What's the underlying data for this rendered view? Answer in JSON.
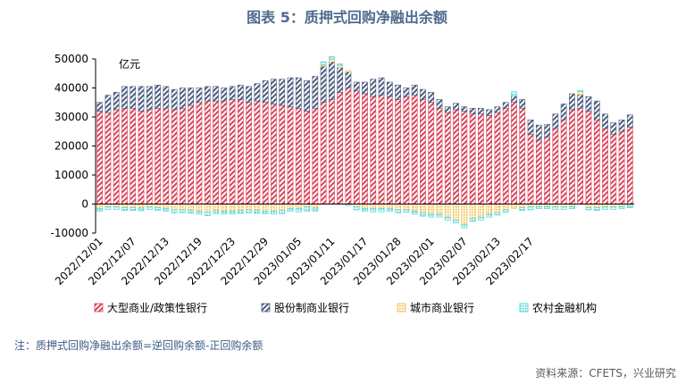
{
  "title": "图表 5：质押式回购净融出余额",
  "note": "注：质押式回购净融出余额=逆回购余额-正回购余额",
  "source": "资料来源：CFETS，兴业研究",
  "chart_data": {
    "type": "bar",
    "stacked": true,
    "unit_label": "亿元",
    "ylim": [
      -10000,
      50000
    ],
    "yticks": [
      -10000,
      0,
      10000,
      20000,
      30000,
      40000,
      50000
    ],
    "x_tick_labels": [
      "2022/12/01",
      "2022/12/07",
      "2022/12/13",
      "2022/12/19",
      "2022/12/23",
      "2022/12/29",
      "2023/01/05",
      "2023/01/11",
      "2023/01/17",
      "2023/01/28",
      "2023/02/01",
      "2023/02/07",
      "2023/02/13",
      "2023/02/17"
    ],
    "x_tick_every": 4,
    "legend_position": "bottom",
    "series": [
      {
        "name": "大型商业/政策性银行",
        "color": "#d9445a",
        "values": [
          32000,
          31500,
          32500,
          33000,
          33000,
          32000,
          32500,
          33000,
          33000,
          32500,
          33000,
          34000,
          35000,
          35500,
          35500,
          35500,
          36000,
          36000,
          35000,
          35500,
          35000,
          34500,
          34000,
          33500,
          33000,
          32000,
          33000,
          35000,
          36000,
          38500,
          40000,
          39000,
          38000,
          37000,
          37500,
          37000,
          36000,
          37000,
          37500,
          36000,
          35000,
          33000,
          31500,
          32500,
          32000,
          31000,
          31000,
          30500,
          31500,
          33000,
          35000,
          33000,
          24000,
          22000,
          23000,
          26000,
          29000,
          32500,
          33000,
          32000,
          29000,
          26000,
          24000,
          25000,
          26500
        ]
      },
      {
        "name": "股份制商业银行",
        "color": "#4b5c7e",
        "values": [
          3000,
          6000,
          6000,
          7500,
          7500,
          8500,
          8000,
          8000,
          7500,
          7000,
          7000,
          6000,
          5000,
          5000,
          5000,
          4500,
          4500,
          5000,
          5500,
          6000,
          7500,
          8500,
          9000,
          10000,
          10500,
          10500,
          11000,
          12500,
          13000,
          8500,
          5500,
          3000,
          4000,
          6000,
          6000,
          5000,
          5000,
          3000,
          3500,
          3500,
          3500,
          3000,
          2000,
          2200,
          1500,
          2000,
          2000,
          2000,
          2000,
          2000,
          2200,
          3000,
          5000,
          5200,
          4400,
          5000,
          5500,
          5500,
          4700,
          5000,
          6500,
          5000,
          4000,
          4000,
          4200
        ]
      },
      {
        "name": "城市商业银行",
        "color": "#f0b848",
        "values": [
          -1500,
          -1000,
          -1000,
          -1200,
          -1200,
          -1400,
          -1000,
          -1200,
          -1500,
          -2000,
          -2000,
          -2200,
          -2500,
          -2800,
          -2300,
          -2500,
          -2500,
          -2200,
          -2000,
          -2200,
          -2400,
          -2500,
          -2200,
          -1500,
          -1500,
          -1000,
          -1400,
          500,
          1000,
          800,
          500,
          -1000,
          -1500,
          -1500,
          -1500,
          -1500,
          -2000,
          -2000,
          -2500,
          -3000,
          -3500,
          -3500,
          -4500,
          -5500,
          -7000,
          -5000,
          -4500,
          -3500,
          -3000,
          -2000,
          -1500,
          -1200,
          -1000,
          -800,
          -800,
          -1000,
          -1000,
          -800,
          1000,
          -1200,
          -1200,
          -1000,
          -1000,
          -800,
          -500
        ]
      },
      {
        "name": "农村金融机构",
        "color": "#3dcfd3",
        "values": [
          -1000,
          -800,
          -800,
          -1000,
          -1000,
          -900,
          -800,
          -900,
          -1000,
          -1000,
          -1000,
          -1000,
          -1000,
          -1200,
          -1000,
          -1000,
          -1000,
          -1000,
          -1000,
          -1000,
          -1000,
          -1000,
          -1200,
          -1000,
          -1200,
          -1500,
          -1000,
          1000,
          800,
          500,
          -500,
          -1000,
          -1000,
          -1200,
          -1200,
          -1000,
          -1000,
          -800,
          -1000,
          -1200,
          -1000,
          -1000,
          -1000,
          -1000,
          -1200,
          -1000,
          -1000,
          -1000,
          -800,
          -800,
          1500,
          -1000,
          -1000,
          -800,
          -800,
          -800,
          -800,
          -800,
          500,
          -800,
          -1000,
          -800,
          -800,
          -800,
          -800
        ]
      }
    ]
  }
}
